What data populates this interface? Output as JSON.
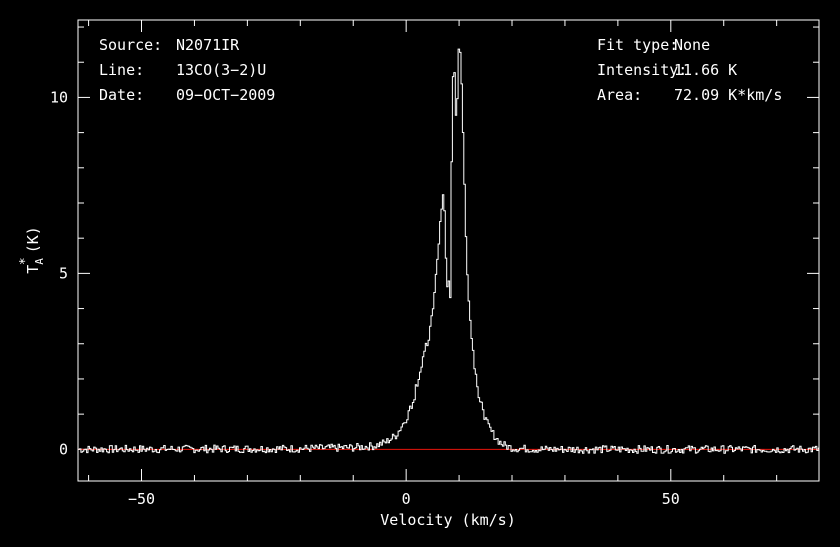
{
  "chart_data": {
    "type": "line",
    "title": "",
    "xlabel": "Velocity (km/s)",
    "ylabel_main": "T",
    "ylabel_sup": "*",
    "ylabel_sub": "A",
    "ylabel_unit": "(K)",
    "xlim": [
      -62,
      78
    ],
    "ylim": [
      -0.9,
      12.2
    ],
    "xticks": [
      -50,
      0,
      50
    ],
    "xtick_labels": [
      "−50",
      "0",
      "50"
    ],
    "yticks": [
      0,
      5,
      10
    ],
    "ytick_labels": [
      "0",
      "5",
      "10"
    ],
    "grid": false,
    "baseline": {
      "y": 0,
      "color": "#e8150b"
    },
    "line_color": "#ffffff",
    "annotations_left": [
      {
        "label": "Source:",
        "value": "N2071IR"
      },
      {
        "label": "Line:",
        "value": "13CO(3−2)U"
      },
      {
        "label": "Date:",
        "value": "09−OCT−2009"
      }
    ],
    "annotations_right": [
      {
        "label": "Fit type:",
        "value": "None"
      },
      {
        "label": "Intensity:",
        "value": "11.66 K"
      },
      {
        "label": "Area:",
        "value": "72.09 K*km/s"
      }
    ],
    "series": [
      {
        "x": [
          -62,
          -20,
          -10,
          -6,
          -4,
          -2,
          0,
          1,
          2,
          3,
          4,
          4.5,
          5,
          5.5,
          6,
          6.5,
          7,
          7.3,
          7.6,
          7.9,
          8.2,
          8.5,
          8.8,
          9.1,
          9.4,
          9.7,
          10,
          10.3,
          10.6,
          10.9,
          11.2,
          11.5,
          12,
          12.5,
          13,
          13.5,
          14,
          15,
          16,
          17,
          18,
          19,
          20,
          22,
          25,
          30,
          78
        ],
        "values": [
          0.0,
          0.02,
          0.05,
          0.1,
          0.2,
          0.4,
          0.9,
          1.3,
          1.9,
          2.5,
          3.1,
          3.5,
          4.1,
          4.9,
          5.8,
          6.7,
          7.5,
          5.8,
          4.5,
          4.8,
          4.4,
          8.7,
          10.9,
          10.5,
          8.7,
          11.3,
          11.66,
          10.8,
          9.0,
          7.5,
          6.0,
          4.8,
          3.6,
          2.8,
          2.2,
          1.7,
          1.3,
          0.8,
          0.5,
          0.3,
          0.15,
          0.08,
          0.04,
          0.02,
          0.0,
          0.0,
          0.0
        ]
      }
    ]
  }
}
